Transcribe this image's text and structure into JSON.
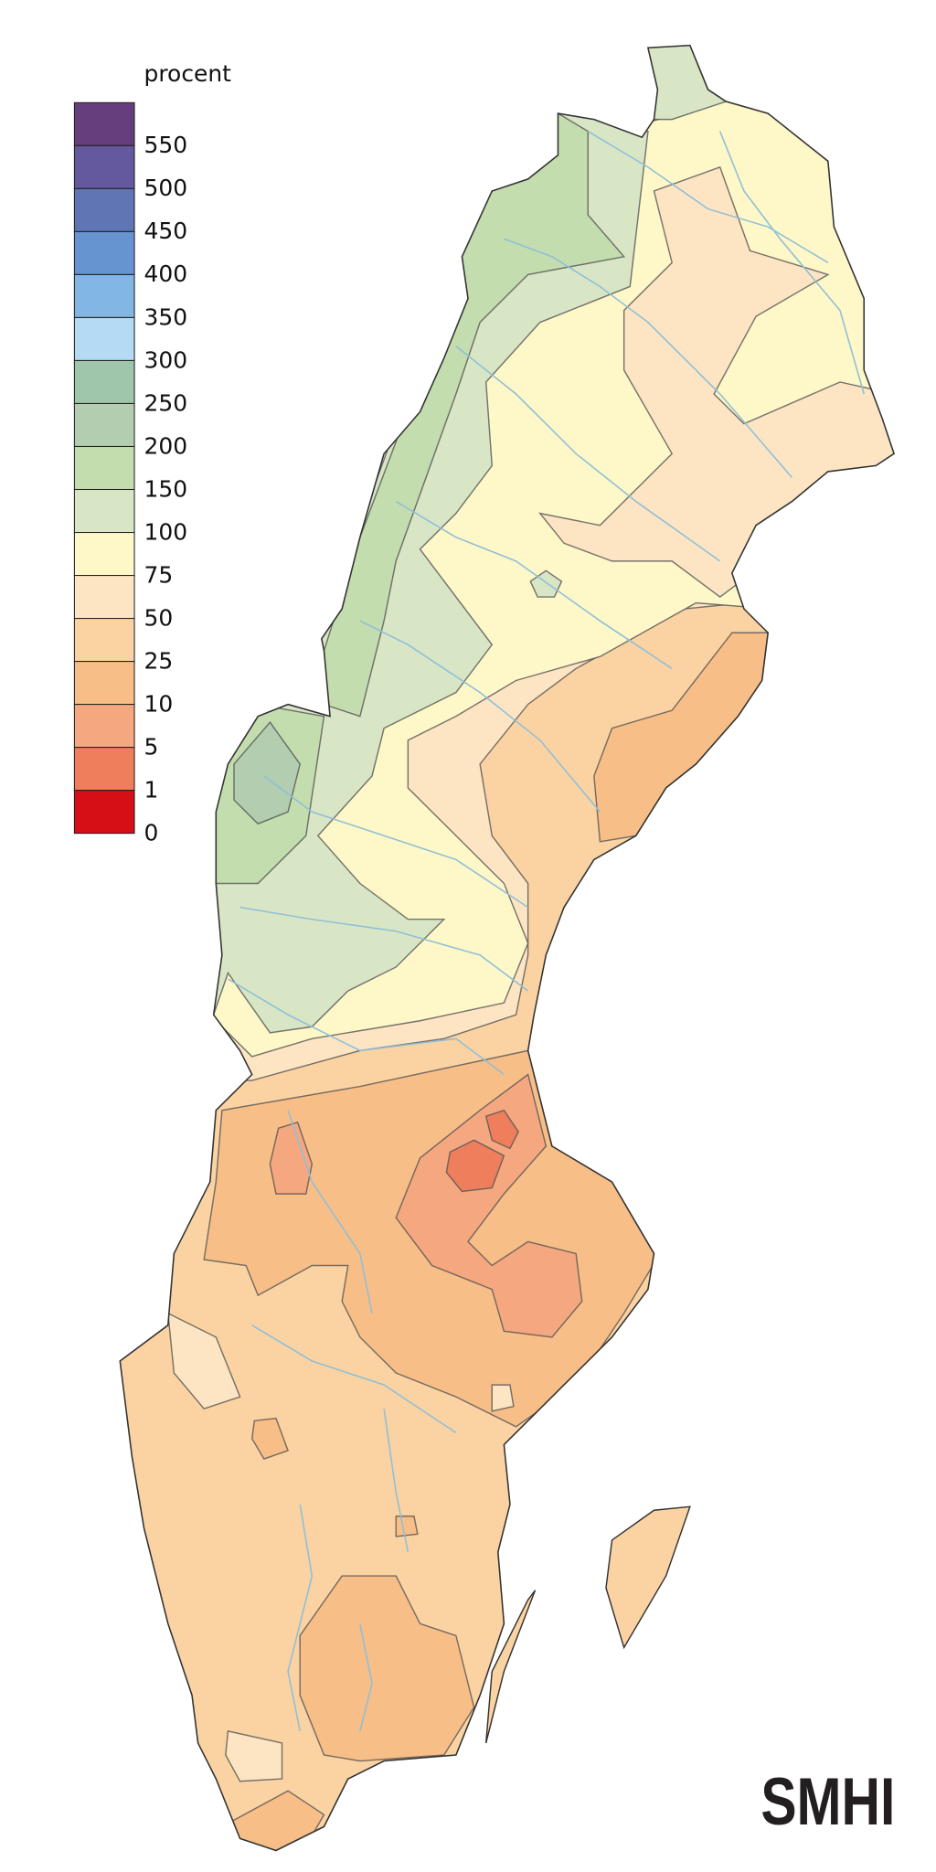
{
  "legend": {
    "title": "procent",
    "items": [
      {
        "label": "550",
        "color": "#663d7d"
      },
      {
        "label": "500",
        "color": "#64589f"
      },
      {
        "label": "450",
        "color": "#6075b4"
      },
      {
        "label": "400",
        "color": "#6694d1"
      },
      {
        "label": "350",
        "color": "#82b6e3"
      },
      {
        "label": "300",
        "color": "#b5daf4"
      },
      {
        "label": "250",
        "color": "#9fc6ab"
      },
      {
        "label": "200",
        "color": "#b3cdb0"
      },
      {
        "label": "150",
        "color": "#c3ddae"
      },
      {
        "label": "100",
        "color": "#d8e6c5"
      },
      {
        "label": "75",
        "color": "#fef7c8"
      },
      {
        "label": "50",
        "color": "#fde5c3"
      },
      {
        "label": "25",
        "color": "#fbd3a2"
      },
      {
        "label": "10",
        "color": "#f8be87"
      },
      {
        "label": "5",
        "color": "#f5a880"
      },
      {
        "label": "1",
        "color": "#ee7e5c"
      },
      {
        "label": "0",
        "color": "#d60e16"
      }
    ]
  },
  "logo": {
    "text": "SMHI"
  },
  "colors": {
    "river": "#8fbfd8",
    "outline": "#333333"
  }
}
